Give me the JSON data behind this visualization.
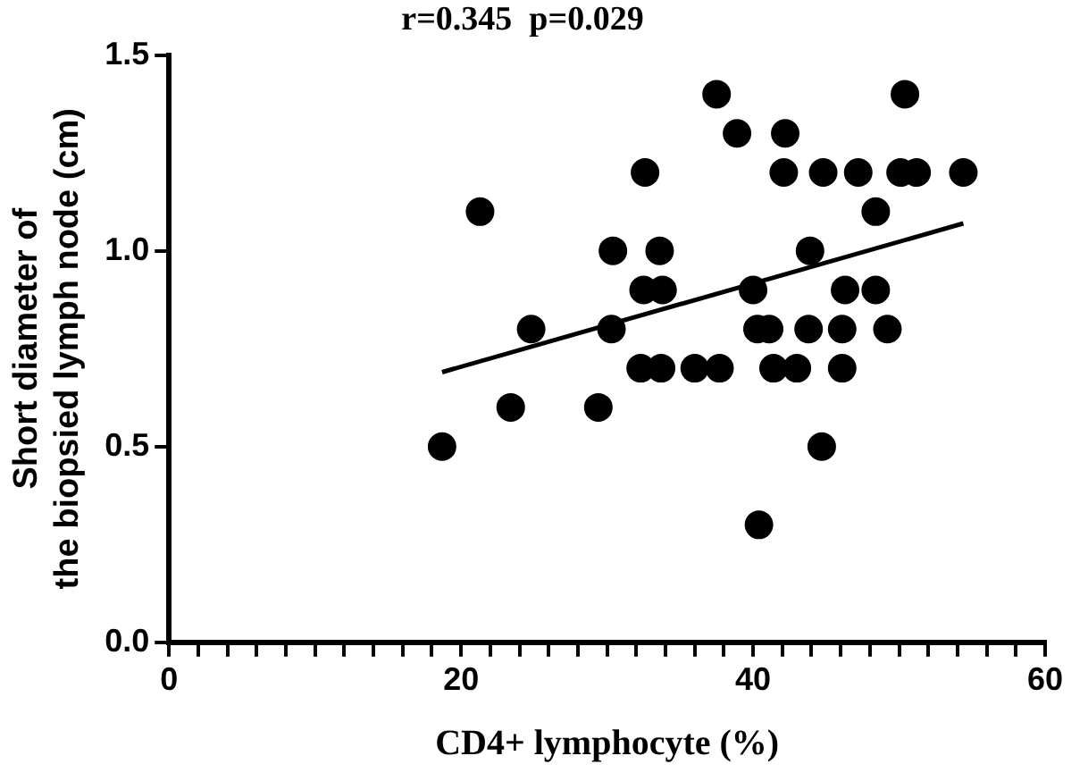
{
  "chart_data": {
    "type": "scatter",
    "title": "r=0.345  p=0.029",
    "xlabel": "CD4+ lymphocyte (%)",
    "ylabel": "Short diameter of\nthe biopsied lymph node (cm)",
    "xlim": [
      0,
      60
    ],
    "xticks": [
      0,
      {
        "value": 2,
        "label": null
      },
      {
        "value": 4,
        "label": null
      },
      {
        "value": 6,
        "label": null
      },
      {
        "value": 8,
        "label": null
      },
      {
        "value": 10,
        "label": null
      },
      {
        "value": 12,
        "label": null
      },
      {
        "value": 14,
        "label": null
      },
      {
        "value": 16,
        "label": null
      },
      {
        "value": 18,
        "label": null
      },
      20,
      {
        "value": 22,
        "label": null
      },
      {
        "value": 24,
        "label": null
      },
      {
        "value": 26,
        "label": null
      },
      {
        "value": 28,
        "label": null
      },
      {
        "value": 30,
        "label": null
      },
      {
        "value": 32,
        "label": null
      },
      {
        "value": 34,
        "label": null
      },
      {
        "value": 36,
        "label": null
      },
      {
        "value": 38,
        "label": null
      },
      40,
      {
        "value": 42,
        "label": null
      },
      {
        "value": 44,
        "label": null
      },
      {
        "value": 46,
        "label": null
      },
      {
        "value": 48,
        "label": null
      },
      {
        "value": 50,
        "label": null
      },
      {
        "value": 52,
        "label": null
      },
      {
        "value": 54,
        "label": null
      },
      {
        "value": 56,
        "label": null
      },
      {
        "value": 58,
        "label": null
      },
      60
    ],
    "ylim": [
      0,
      1.5
    ],
    "yticks": [
      {
        "value": 0,
        "label": "0.0"
      },
      {
        "value": 0.5,
        "label": "0.5"
      },
      {
        "value": 1,
        "label": "1.0"
      },
      {
        "value": 1.5,
        "label": "1.5"
      }
    ],
    "marker": "circle",
    "legend": false,
    "grid": false,
    "series": [
      {
        "color": "#000000",
        "x": [
          37.5,
          50.4,
          38.9,
          42.2,
          32.6,
          42.1,
          44.8,
          47.2,
          50.1,
          51.2,
          54.4,
          21.3,
          48.4,
          30.4,
          33.6,
          43.9,
          32.5,
          33.8,
          40.0,
          46.3,
          48.4,
          24.8,
          30.3,
          40.3,
          41.1,
          43.8,
          46.1,
          49.2,
          32.3,
          33.7,
          36.0,
          37.7,
          41.4,
          43.0,
          46.1,
          23.4,
          29.4,
          18.7,
          44.7,
          40.4
        ],
        "values": [
          1.4,
          1.4,
          1.3,
          1.3,
          1.2,
          1.2,
          1.2,
          1.2,
          1.2,
          1.2,
          1.2,
          1.1,
          1.1,
          1.0,
          1.0,
          1.0,
          0.9,
          0.9,
          0.9,
          0.9,
          0.9,
          0.8,
          0.8,
          0.8,
          0.8,
          0.8,
          0.8,
          0.8,
          0.7,
          0.7,
          0.7,
          0.7,
          0.7,
          0.7,
          0.7,
          0.6,
          0.6,
          0.5,
          0.5,
          0.3
        ]
      },
      {
        "type": "line",
        "color": "#000000",
        "marker": "none",
        "x": [
          18.7,
          54.4
        ],
        "values": [
          0.69,
          1.07
        ]
      }
    ]
  }
}
